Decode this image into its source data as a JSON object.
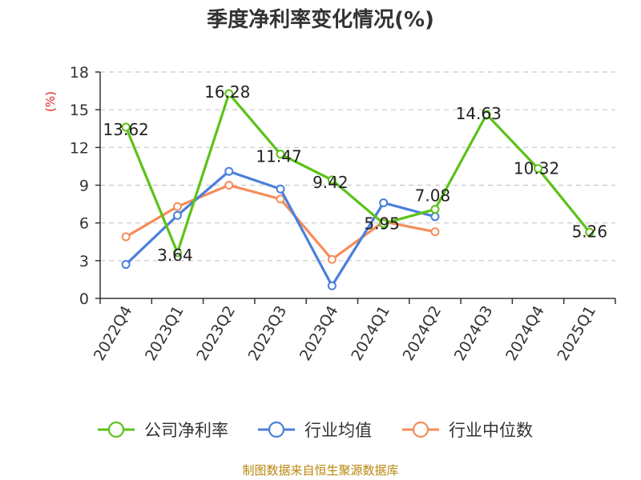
{
  "chart_data": {
    "type": "line",
    "title": "季度净利率变化情况(%)",
    "ylabel": "(%)",
    "xlabel": "",
    "ylim": [
      0,
      18
    ],
    "yticks": [
      0,
      3,
      6,
      9,
      12,
      15,
      18
    ],
    "grid": true,
    "legend_position": "bottom",
    "categories": [
      "2022Q4",
      "2023Q1",
      "2023Q2",
      "2023Q3",
      "2023Q4",
      "2024Q1",
      "2024Q2",
      "2024Q3",
      "2024Q4",
      "2025Q1"
    ],
    "series": [
      {
        "name": "公司净利率",
        "color": "#5cc21a",
        "values": [
          13.62,
          3.64,
          16.28,
          11.47,
          9.42,
          5.95,
          7.08,
          14.63,
          10.32,
          5.26
        ],
        "labels": [
          "13.62",
          "3.64",
          "16.28",
          "11.47",
          "9.42",
          "5.95",
          "7.08",
          "14.63",
          "10.32",
          "5.26"
        ]
      },
      {
        "name": "行业均值",
        "color": "#4a7fdb",
        "values": [
          2.7,
          6.6,
          10.1,
          8.7,
          1.0,
          7.6,
          6.5,
          null,
          null,
          null
        ]
      },
      {
        "name": "行业中位数",
        "color": "#f58c5a",
        "values": [
          4.9,
          7.3,
          9.0,
          7.9,
          3.1,
          6.1,
          5.3,
          null,
          null,
          null
        ]
      }
    ]
  },
  "source": "制图数据来自恒生聚源数据库"
}
